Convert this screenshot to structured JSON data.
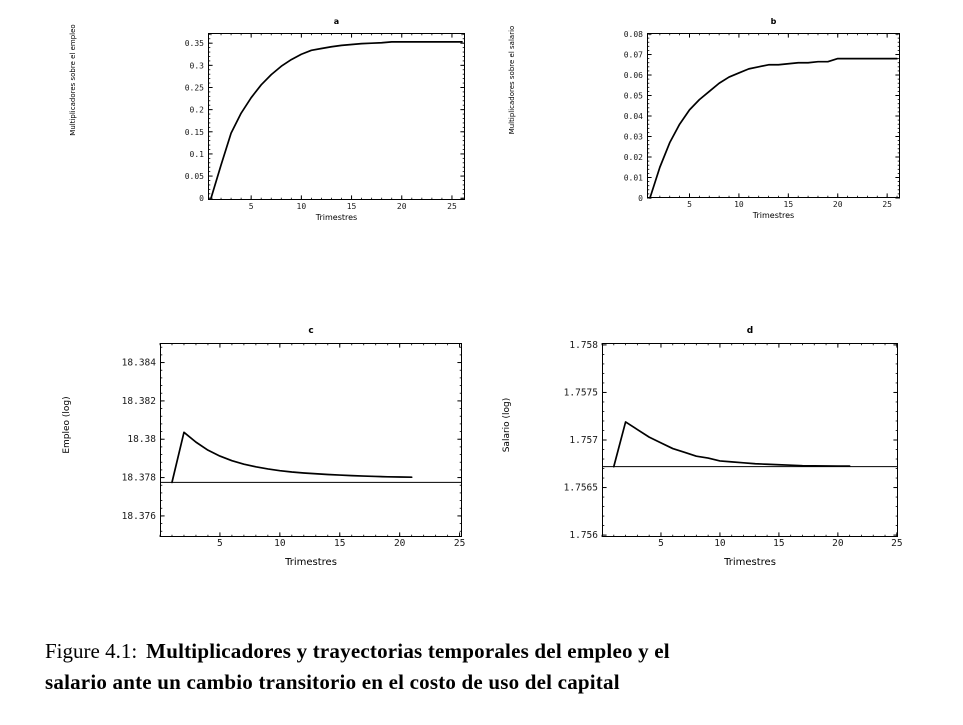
{
  "page": {
    "background": "#ffffff",
    "ink_color": "#000000"
  },
  "caption": {
    "prefix": "Figure 4.1:",
    "body_line1": "Multiplicadores y trayectorias temporales del empleo y el",
    "body_line2": "salario ante un cambio transitorio en el costo de uso del capital"
  },
  "chart_data": [
    {
      "id": "a",
      "type": "line",
      "title": "a",
      "xlabel": "Trimestres",
      "ylabel": "Multiplicadores sobre el empleo",
      "grid": false,
      "legend": null,
      "xlim": [
        0.7,
        26.3
      ],
      "ylim": [
        -0.004,
        0.373
      ],
      "xticks": [
        5,
        10,
        15,
        20,
        25
      ],
      "xtick_labels": [
        "5",
        "10",
        "15",
        "20",
        "25"
      ],
      "x_minor": 1,
      "yticks": [
        0,
        0.05,
        0.1,
        0.15,
        0.2,
        0.25,
        0.3,
        0.35
      ],
      "ytick_labels": [
        "0",
        "0.05",
        "0.1",
        "0.15",
        "0.2",
        "0.25",
        "0.3",
        "0.35"
      ],
      "y_minor": 0.01,
      "x": [
        1,
        2,
        3,
        4,
        5,
        6,
        7,
        8,
        9,
        10,
        11,
        12,
        13,
        14,
        15,
        16,
        17,
        18,
        19,
        20,
        21,
        22,
        23,
        24,
        25,
        26
      ],
      "y": [
        0,
        0.075,
        0.147,
        0.192,
        0.227,
        0.256,
        0.279,
        0.298,
        0.313,
        0.325,
        0.334,
        0.338,
        0.342,
        0.345,
        0.347,
        0.349,
        0.35,
        0.351,
        0.353,
        0.353,
        0.353,
        0.353,
        0.353,
        0.353,
        0.353,
        0.353
      ],
      "hline": null,
      "line_color": "#000000"
    },
    {
      "id": "b",
      "type": "line",
      "title": "b",
      "xlabel": "Trimestres",
      "ylabel": "Multiplicadores sobre el salario",
      "grid": false,
      "legend": null,
      "xlim": [
        0.7,
        26.3
      ],
      "ylim": [
        0,
        0.0805
      ],
      "xticks": [
        5,
        10,
        15,
        20,
        25
      ],
      "xtick_labels": [
        "5",
        "10",
        "15",
        "20",
        "25"
      ],
      "x_minor": 1,
      "yticks": [
        0,
        0.01,
        0.02,
        0.03,
        0.04,
        0.05,
        0.06,
        0.07,
        0.08
      ],
      "ytick_labels": [
        "0",
        "0.01",
        "0.02",
        "0.03",
        "0.04",
        "0.05",
        "0.06",
        "0.07",
        "0.08"
      ],
      "y_minor": 0.002,
      "x": [
        1,
        2,
        3,
        4,
        5,
        6,
        7,
        8,
        9,
        10,
        11,
        12,
        13,
        14,
        15,
        16,
        17,
        18,
        19,
        20,
        21,
        22,
        23,
        24,
        25,
        26
      ],
      "y": [
        0,
        0.015,
        0.027,
        0.036,
        0.043,
        0.048,
        0.052,
        0.056,
        0.059,
        0.061,
        0.063,
        0.064,
        0.065,
        0.065,
        0.0655,
        0.066,
        0.066,
        0.0665,
        0.0665,
        0.068,
        0.068,
        0.068,
        0.068,
        0.068,
        0.068,
        0.068
      ],
      "hline": null,
      "line_color": "#000000"
    },
    {
      "id": "c",
      "type": "line",
      "title": "c",
      "xlabel": "Trimestres",
      "ylabel": "Empleo (log)",
      "grid": false,
      "legend": null,
      "xlim": [
        0,
        25.2
      ],
      "ylim": [
        18.3749,
        18.38502
      ],
      "xticks": [
        5,
        10,
        15,
        20,
        25
      ],
      "xtick_labels": [
        "5",
        "10",
        "15",
        "20",
        "25"
      ],
      "x_minor": 1,
      "yticks": [
        18.376,
        18.378,
        18.38,
        18.382,
        18.384
      ],
      "ytick_labels": [
        "18.376",
        "18.378",
        "18.38",
        "18.382",
        "18.384"
      ],
      "y_minor": 0.0004,
      "x": [
        1,
        2,
        3,
        4,
        5,
        6,
        7,
        8,
        9,
        10,
        11,
        12,
        13,
        14,
        15,
        16,
        17,
        18,
        19,
        20,
        21
      ],
      "y": [
        18.37775,
        18.38036,
        18.37985,
        18.37943,
        18.37912,
        18.37888,
        18.3787,
        18.37856,
        18.37845,
        18.37836,
        18.37829,
        18.37824,
        18.3782,
        18.37816,
        18.37813,
        18.3781,
        18.37808,
        18.37806,
        18.37804,
        18.37803,
        18.37802
      ],
      "hline": 18.37775,
      "line_color": "#000000"
    },
    {
      "id": "d",
      "type": "line",
      "title": "d",
      "xlabel": "Trimestres",
      "ylabel": "Salario (log)",
      "grid": false,
      "legend": null,
      "xlim": [
        0,
        25.1
      ],
      "ylim": [
        1.75598,
        1.75802
      ],
      "xticks": [
        5,
        10,
        15,
        20,
        25
      ],
      "xtick_labels": [
        "5",
        "10",
        "15",
        "20",
        "25"
      ],
      "x_minor": 1,
      "yticks": [
        1.756,
        1.7565,
        1.757,
        1.7575,
        1.758
      ],
      "ytick_labels": [
        "1.756",
        "1.7565",
        "1.757",
        "1.7575",
        "1.758"
      ],
      "y_minor": 0.0001,
      "x": [
        1,
        2,
        3,
        4,
        5,
        6,
        7,
        8,
        9,
        10,
        11,
        12,
        13,
        14,
        15,
        16,
        17,
        18,
        19,
        20,
        21
      ],
      "y": [
        1.75672,
        1.75719,
        1.75711,
        1.75703,
        1.75697,
        1.75691,
        1.75687,
        1.75683,
        1.75681,
        1.75678,
        1.75677,
        1.75676,
        1.75675,
        1.756745,
        1.75674,
        1.756735,
        1.75673,
        1.756728,
        1.756727,
        1.756726,
        1.756725
      ],
      "hline": 1.75672,
      "line_color": "#000000"
    }
  ]
}
